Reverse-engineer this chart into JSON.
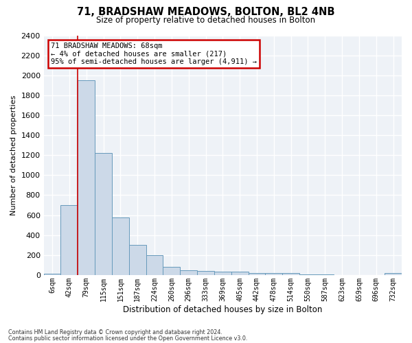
{
  "title": "71, BRADSHAW MEADOWS, BOLTON, BL2 4NB",
  "subtitle": "Size of property relative to detached houses in Bolton",
  "xlabel": "Distribution of detached houses by size in Bolton",
  "ylabel": "Number of detached properties",
  "categories": [
    "6sqm",
    "42sqm",
    "79sqm",
    "115sqm",
    "151sqm",
    "187sqm",
    "224sqm",
    "260sqm",
    "296sqm",
    "333sqm",
    "369sqm",
    "405sqm",
    "442sqm",
    "478sqm",
    "514sqm",
    "550sqm",
    "587sqm",
    "623sqm",
    "659sqm",
    "696sqm",
    "732sqm"
  ],
  "values": [
    15,
    700,
    1950,
    1220,
    575,
    305,
    200,
    80,
    45,
    38,
    32,
    32,
    20,
    18,
    20,
    5,
    3,
    2,
    2,
    2,
    20
  ],
  "bar_color": "#ccd9e8",
  "bar_edge_color": "#6699bb",
  "annotation_text": "71 BRADSHAW MEADOWS: 68sqm\n← 4% of detached houses are smaller (217)\n95% of semi-detached houses are larger (4,911) →",
  "annotation_box_color": "#ffffff",
  "annotation_box_edge_color": "#cc0000",
  "vline_x": 1.5,
  "vline_color": "#cc0000",
  "ylim": [
    0,
    2400
  ],
  "yticks": [
    0,
    200,
    400,
    600,
    800,
    1000,
    1200,
    1400,
    1600,
    1800,
    2000,
    2200,
    2400
  ],
  "bg_color": "#eef2f7",
  "grid_color": "#ffffff",
  "footer_line1": "Contains HM Land Registry data © Crown copyright and database right 2024.",
  "footer_line2": "Contains public sector information licensed under the Open Government Licence v3.0."
}
